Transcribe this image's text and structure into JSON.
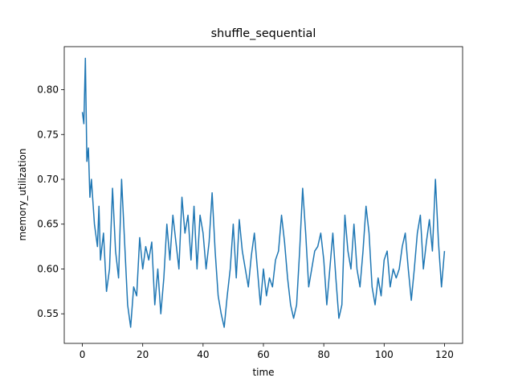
{
  "chart_data": {
    "type": "line",
    "title": "shuffle_sequential",
    "xlabel": "time",
    "ylabel": "memory_utilization",
    "x": [
      0,
      0.5,
      1,
      1.5,
      2,
      2.5,
      3,
      3.5,
      4,
      5,
      5.5,
      6,
      7,
      8,
      9,
      10,
      11,
      12,
      13,
      14,
      15,
      16,
      17,
      18,
      19,
      20,
      21,
      22,
      23,
      24,
      25,
      26,
      27,
      28,
      29,
      30,
      31,
      32,
      33,
      34,
      35,
      36,
      37,
      38,
      39,
      40,
      41,
      42,
      43,
      44,
      45,
      46,
      47,
      48,
      49,
      50,
      51,
      52,
      53,
      54,
      55,
      56,
      57,
      58,
      59,
      60,
      61,
      62,
      63,
      64,
      65,
      66,
      67,
      68,
      69,
      70,
      71,
      72,
      73,
      74,
      75,
      76,
      77,
      78,
      79,
      80,
      81,
      82,
      83,
      84,
      85,
      86,
      87,
      88,
      89,
      90,
      91,
      92,
      93,
      94,
      95,
      96,
      97,
      98,
      99,
      100,
      101,
      102,
      103,
      104,
      105,
      106,
      107,
      108,
      109,
      110,
      111,
      112,
      113,
      114,
      115,
      116,
      117,
      118,
      119,
      120
    ],
    "values": [
      0.775,
      0.762,
      0.835,
      0.72,
      0.735,
      0.68,
      0.7,
      0.675,
      0.65,
      0.625,
      0.67,
      0.61,
      0.64,
      0.575,
      0.6,
      0.69,
      0.62,
      0.59,
      0.7,
      0.63,
      0.56,
      0.535,
      0.58,
      0.57,
      0.635,
      0.6,
      0.625,
      0.61,
      0.63,
      0.56,
      0.6,
      0.55,
      0.59,
      0.65,
      0.61,
      0.66,
      0.63,
      0.6,
      0.68,
      0.64,
      0.66,
      0.61,
      0.67,
      0.6,
      0.66,
      0.64,
      0.6,
      0.63,
      0.685,
      0.62,
      0.57,
      0.55,
      0.535,
      0.57,
      0.6,
      0.65,
      0.59,
      0.655,
      0.62,
      0.6,
      0.58,
      0.615,
      0.64,
      0.6,
      0.56,
      0.6,
      0.57,
      0.59,
      0.58,
      0.61,
      0.62,
      0.66,
      0.63,
      0.59,
      0.56,
      0.545,
      0.56,
      0.62,
      0.69,
      0.64,
      0.58,
      0.6,
      0.62,
      0.625,
      0.64,
      0.61,
      0.56,
      0.6,
      0.64,
      0.59,
      0.545,
      0.56,
      0.66,
      0.62,
      0.6,
      0.65,
      0.6,
      0.58,
      0.62,
      0.67,
      0.64,
      0.58,
      0.56,
      0.59,
      0.57,
      0.61,
      0.62,
      0.58,
      0.6,
      0.59,
      0.6,
      0.625,
      0.64,
      0.6,
      0.565,
      0.6,
      0.64,
      0.66,
      0.6,
      0.63,
      0.655,
      0.62,
      0.7,
      0.63,
      0.58,
      0.62
    ],
    "color": "#1f77b4",
    "xlim": [
      -6,
      126
    ],
    "xticks": [
      0,
      20,
      40,
      60,
      80,
      100,
      120
    ],
    "ylim": [
      0.517,
      0.848
    ],
    "yticks": [
      0.55,
      {
        "value": 0.6,
        "label": "0.60"
      },
      0.65,
      {
        "value": 0.7,
        "label": "0.70"
      },
      0.75,
      {
        "value": 0.8,
        "label": "0.80"
      }
    ]
  }
}
